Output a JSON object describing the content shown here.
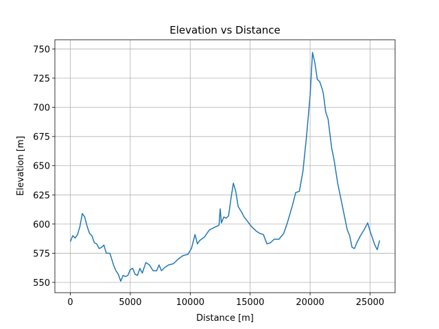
{
  "chart_data": {
    "type": "line",
    "title": "Elevation vs Distance",
    "x_label": "Distance [m]",
    "y_label": "Elevation [m]",
    "x": [
      0,
      200,
      400,
      600,
      800,
      1000,
      1200,
      1400,
      1600,
      1800,
      2000,
      2200,
      2400,
      2600,
      2800,
      3000,
      3300,
      3600,
      3800,
      4000,
      4200,
      4400,
      4600,
      4800,
      5000,
      5200,
      5400,
      5600,
      5800,
      6000,
      6300,
      6600,
      6900,
      7200,
      7400,
      7600,
      7900,
      8200,
      8600,
      9000,
      9400,
      9800,
      10100,
      10400,
      10600,
      10800,
      11200,
      11600,
      12000,
      12400,
      12500,
      12600,
      12800,
      13000,
      13200,
      13400,
      13600,
      13800,
      14000,
      14300,
      14500,
      14800,
      15100,
      15500,
      15800,
      16100,
      16400,
      16700,
      17000,
      17400,
      17800,
      18100,
      18500,
      18800,
      19100,
      19400,
      19700,
      20000,
      20200,
      20400,
      20600,
      20800,
      21000,
      21100,
      21300,
      21500,
      21800,
      22000,
      22300,
      22600,
      22900,
      23100,
      23300,
      23500,
      23700,
      23900,
      24200,
      24500,
      24800,
      25000,
      25200,
      25400,
      25600,
      25800
    ],
    "series": [
      {
        "name": "Elevation",
        "color": "#1f77b4",
        "values": [
          585,
          590,
          588,
          591,
          598,
          609,
          606,
          598,
          592,
          590,
          584,
          583,
          579,
          580,
          582,
          575,
          575,
          565,
          560,
          557,
          551,
          556,
          555,
          556,
          561,
          562,
          557,
          556,
          562,
          558,
          567,
          565,
          560,
          560,
          565,
          560,
          563,
          565,
          566,
          570,
          573,
          574,
          579,
          591,
          583,
          586,
          589,
          595,
          597,
          599,
          613,
          601,
          606,
          605,
          607,
          622,
          635,
          628,
          615,
          610,
          606,
          602,
          598,
          594,
          592,
          591,
          583,
          584,
          587,
          587,
          592,
          601,
          615,
          627,
          628,
          645,
          675,
          710,
          747,
          738,
          724,
          722,
          716,
          712,
          696,
          690,
          665,
          655,
          635,
          620,
          605,
          595,
          590,
          580,
          579,
          584,
          590,
          595,
          601,
          594,
          588,
          582,
          578,
          586
        ]
      }
    ],
    "xlim": [
      -1290,
      27090
    ],
    "ylim": [
      541.2,
      757.9
    ],
    "xticks": [
      0,
      5000,
      10000,
      15000,
      20000,
      25000
    ],
    "yticks": [
      550,
      575,
      600,
      625,
      650,
      675,
      700,
      725,
      750
    ],
    "grid": true
  }
}
